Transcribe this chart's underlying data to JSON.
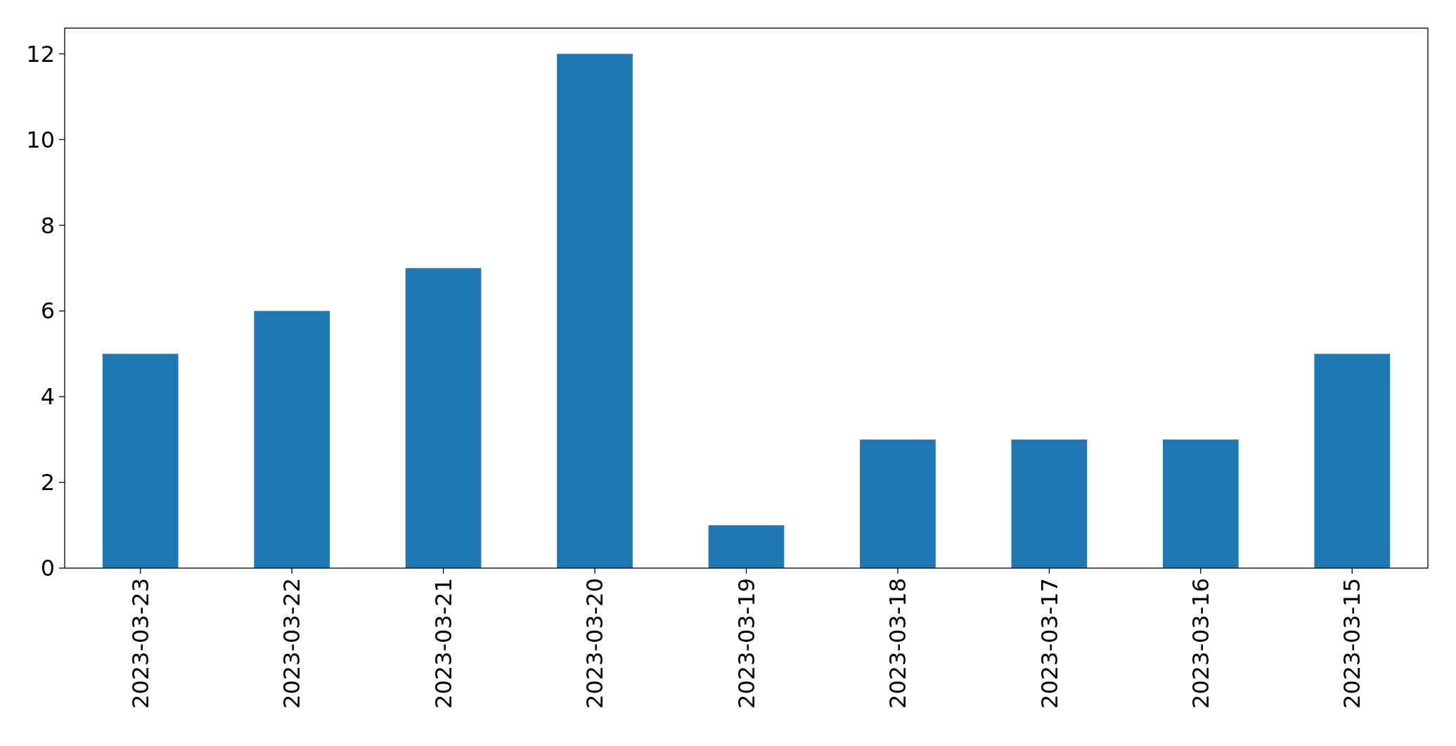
{
  "chart_data": {
    "type": "bar",
    "categories": [
      "2023-03-23",
      "2023-03-22",
      "2023-03-21",
      "2023-03-20",
      "2023-03-19",
      "2023-03-18",
      "2023-03-17",
      "2023-03-16",
      "2023-03-15"
    ],
    "values": [
      5,
      6,
      7,
      12,
      1,
      3,
      3,
      3,
      5
    ],
    "color": "#1f77b4",
    "ylim": [
      0,
      12.6
    ],
    "yticks": [
      0,
      2,
      4,
      6,
      8,
      10,
      12
    ]
  }
}
